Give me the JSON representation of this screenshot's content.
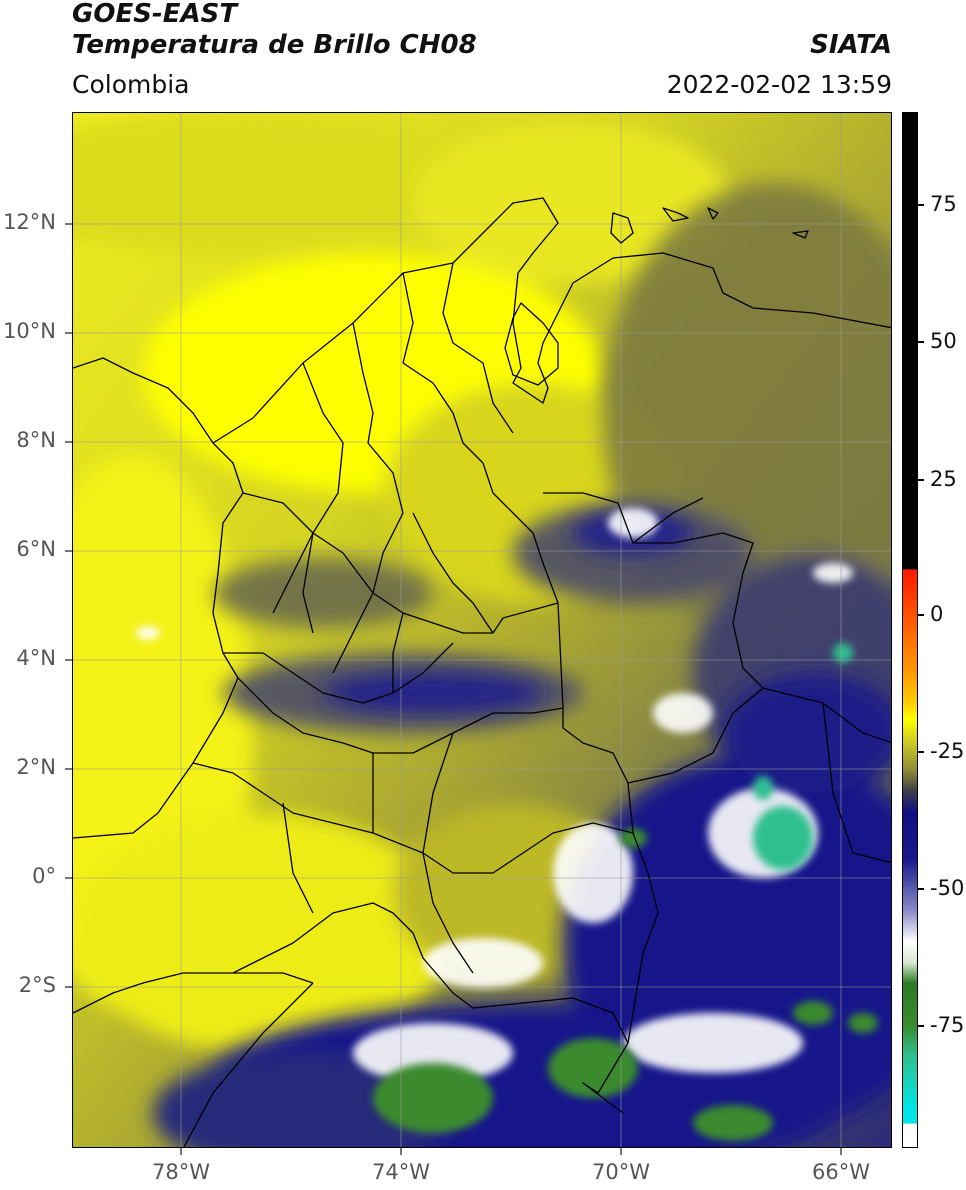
{
  "header": {
    "title_line1": "GOES-EAST",
    "title_line2": "Temperatura de Brillo CH08",
    "brand": "SIATA",
    "region": "Colombia",
    "timestamp": "2022-02-02 13:59"
  },
  "map": {
    "lat_labels": [
      "12°N",
      "10°N",
      "8°N",
      "6°N",
      "4°N",
      "2°N",
      "0°",
      "2°S"
    ],
    "lon_labels": [
      "78°W",
      "74°W",
      "70°W",
      "66°W"
    ]
  },
  "colorbar": {
    "tick_labels": [
      "75",
      "50",
      "25",
      "0",
      "-25",
      "-50",
      "-75"
    ],
    "colors": {
      "black": "#000000",
      "red": "#ff1a00",
      "orange": "#ff9a00",
      "yellow": "#ffff00",
      "olive": "#8d8a35",
      "navy": "#101083",
      "white": "#ffffff",
      "green": "#2e7a26",
      "teal": "#2fbf8f",
      "cyan": "#00e5e5"
    }
  }
}
